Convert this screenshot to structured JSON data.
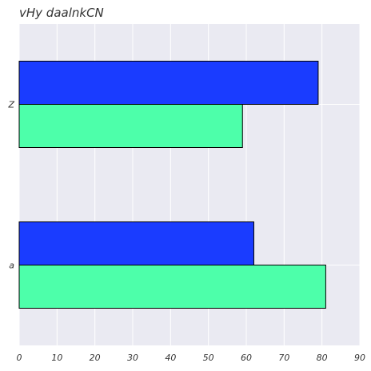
{
  "chart_data": {
    "type": "bar",
    "orientation": "horizontal",
    "title": "vHy daalnkCN",
    "xlabel": "",
    "ylabel": "",
    "categories": [
      "a",
      "Z"
    ],
    "series": [
      {
        "values": [
          62,
          79
        ],
        "color": "#1a3cff"
      },
      {
        "values": [
          81,
          59
        ],
        "color": "#4dffaa"
      }
    ],
    "xlim": [
      0,
      90
    ],
    "xticks": [
      0,
      10,
      20,
      30,
      40,
      50,
      60,
      70,
      80,
      90
    ],
    "grid": true,
    "background": "#eaeaf2",
    "grid_color": "#ffffff",
    "bar_edge_color": "#000000"
  }
}
